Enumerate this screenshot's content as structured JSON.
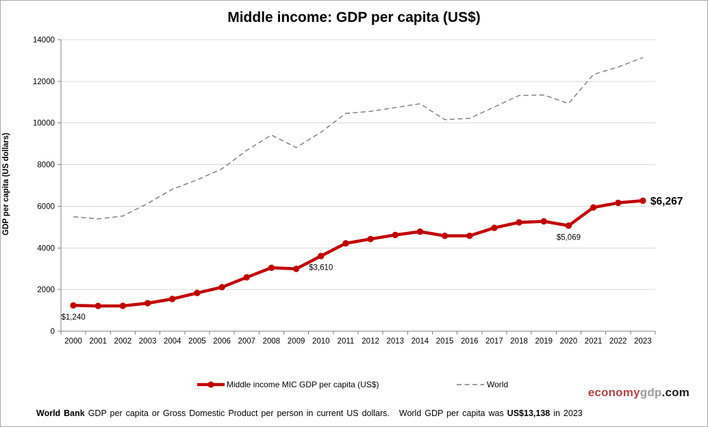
{
  "title": "Middle income: GDP per capita (US$)",
  "y_axis": {
    "label": "GDP per capita (US dollars)",
    "ticks": [
      0,
      2000,
      4000,
      6000,
      8000,
      10000,
      12000,
      14000
    ]
  },
  "x_axis": {
    "categories": [
      "2000",
      "2001",
      "2002",
      "2003",
      "2004",
      "2005",
      "2006",
      "2007",
      "2008",
      "2009",
      "2010",
      "2011",
      "2012",
      "2013",
      "2014",
      "2015",
      "2016",
      "2017",
      "2018",
      "2019",
      "2020",
      "2021",
      "2022",
      "2023"
    ]
  },
  "chart_data": {
    "type": "line",
    "title": "Middle income: GDP per capita (US$)",
    "xlabel": "",
    "ylabel": "GDP per capita (US dollars)",
    "ylim": [
      0,
      14000
    ],
    "grid": "horizontal",
    "legend_position": "bottom",
    "x": [
      2000,
      2001,
      2002,
      2003,
      2004,
      2005,
      2006,
      2007,
      2008,
      2009,
      2010,
      2011,
      2012,
      2013,
      2014,
      2015,
      2016,
      2017,
      2018,
      2019,
      2020,
      2021,
      2022,
      2023
    ],
    "series": [
      {
        "name": "Middle income MIC GDP per capita (US$)",
        "color": "#C00000",
        "style": "solid-with-markers",
        "values": [
          1240,
          1213,
          1217,
          1344,
          1549,
          1836,
          2114,
          2586,
          3047,
          2994,
          3610,
          4219,
          4427,
          4622,
          4782,
          4580,
          4581,
          4964,
          5226,
          5276,
          5069,
          5941,
          6165,
          6267
        ]
      },
      {
        "name": "World",
        "color": "#7A7A7A",
        "style": "dashed",
        "values": [
          5498,
          5392,
          5533,
          6132,
          6818,
          7270,
          7796,
          8684,
          9422,
          8820,
          9554,
          10460,
          10558,
          10741,
          10925,
          10160,
          10222,
          10770,
          11320,
          11344,
          10935,
          12327,
          12688,
          13138
        ]
      }
    ],
    "annotations": [
      {
        "year": 2000,
        "value": 1240,
        "label": "$1,240",
        "placement": "below",
        "bold": false
      },
      {
        "year": 2010,
        "value": 3610,
        "label": "$3,610",
        "placement": "below",
        "bold": false
      },
      {
        "year": 2020,
        "value": 5069,
        "label": "$5,069",
        "placement": "below",
        "bold": false
      },
      {
        "year": 2023,
        "value": 6267,
        "label": "$6,267",
        "placement": "right",
        "bold": true
      }
    ]
  },
  "legend": {
    "mic_label": "Middle income MIC GDP per capita (US$)",
    "world_label": "World"
  },
  "logo": {
    "part1": "economy",
    "part2": "gdp",
    "part3": ".com"
  },
  "footer": {
    "source_bold": "World Bank",
    "sentence1": " GDP per capita or Gross Domestic Product per person in current US dollars.",
    "note_prefix": "World GDP per capita was ",
    "note_bold": "US$13,138",
    "note_suffix": " in 2023"
  },
  "colors": {
    "mic_red": "#C00000",
    "world_gray": "#7A7A7A",
    "gridline": "#D9D9D9",
    "axis": "#808080",
    "logo_red": "#AD4545",
    "logo_gray": "#9C9C9C",
    "logo_black": "#1A1A1A"
  }
}
